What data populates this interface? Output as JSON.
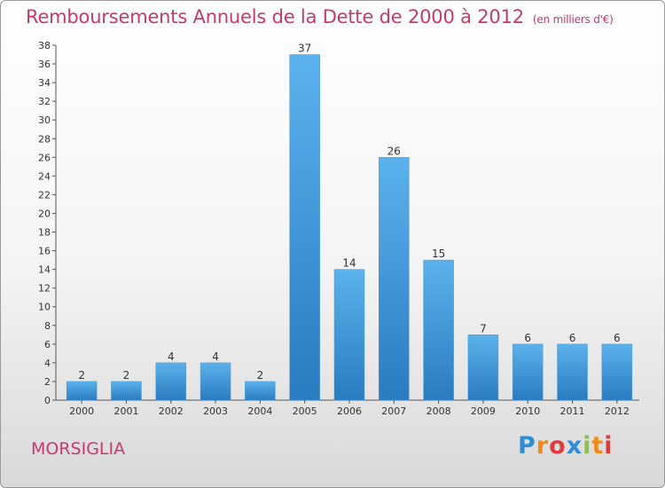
{
  "header": {
    "title": "Remboursements Annuels de la Dette de 2000 à 2012",
    "unit": "(en milliers d'€)"
  },
  "footer": {
    "commune": "MORSIGLIA",
    "logo": {
      "letters": [
        "P",
        "r",
        "o",
        "x",
        "i",
        "t",
        "i"
      ],
      "colors": [
        "#2f8fd6",
        "#f08a1c",
        "#e23a3a",
        "#2f8fd6",
        "#8bc34a",
        "#f08a1c",
        "#e23a3a"
      ]
    }
  },
  "colors": {
    "title": "#c8386e",
    "bar_light": "#5cb2ec",
    "bar_dark": "#2a7bbf"
  },
  "chart_data": {
    "type": "bar",
    "title": "Remboursements Annuels de la Dette de 2000 à 2012",
    "xlabel": "",
    "ylabel": "",
    "categories": [
      "2000",
      "2001",
      "2002",
      "2003",
      "2004",
      "2005",
      "2006",
      "2007",
      "2008",
      "2009",
      "2010",
      "2011",
      "2012"
    ],
    "values": [
      2,
      2,
      4,
      4,
      2,
      37,
      14,
      26,
      15,
      7,
      6,
      6,
      6
    ],
    "ylim": [
      0,
      38
    ],
    "yticks": [
      0,
      2,
      4,
      6,
      8,
      10,
      12,
      14,
      16,
      18,
      20,
      22,
      24,
      26,
      28,
      30,
      32,
      34,
      36,
      38
    ],
    "grid": false,
    "legend": "none"
  }
}
